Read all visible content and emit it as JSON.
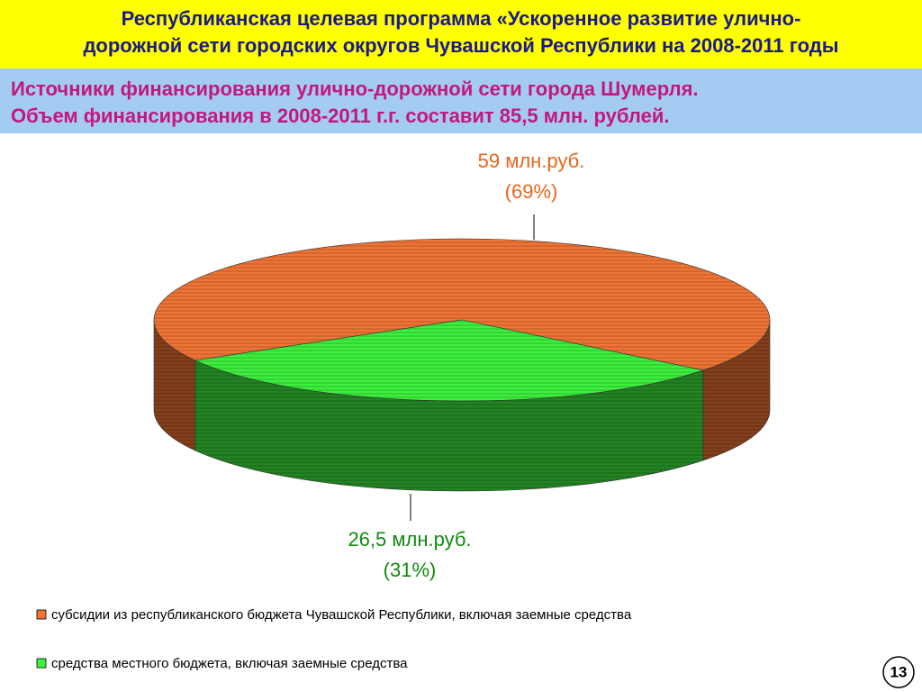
{
  "header": {
    "title_lines": [
      "Республиканская целевая программа «Ускоренное развитие улично-",
      "дорожной сети городских округов Чувашской Республики на 2008-2011 годы"
    ]
  },
  "subtitle_lines": [
    "Источники финансирования улично-дорожной сети города Шумерля.",
    "Объем финансирования в 2008-2011 г.г. составит 85,5 млн. рублей."
  ],
  "chart_data": {
    "type": "pie",
    "categories": [
      "субсидии из республиканского бюджета Чувашской Республики, включая заемные средства",
      "средства местного бюджета, включая заемные средства"
    ],
    "values": [
      59,
      26.5
    ],
    "value_labels": [
      "59 млн.руб.",
      "26,5 млн.руб."
    ],
    "percent_labels": [
      "(69%)",
      "(31%)"
    ],
    "colors": [
      "#f07535",
      "#3ef03e"
    ],
    "label_colors": [
      "#e8651c",
      "#118a11"
    ]
  },
  "page_number": "13"
}
